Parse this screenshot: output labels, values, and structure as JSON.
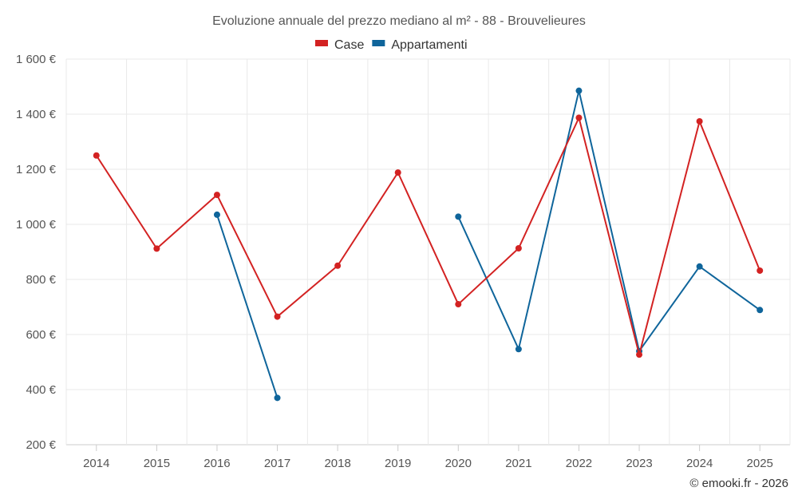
{
  "colors": {
    "case": "#d32222",
    "appartamenti": "#0f659b",
    "grid": "#e9e9e9",
    "text": "#555555"
  },
  "credit": "© emooki.fr - 2026",
  "chart_data": {
    "type": "line",
    "title": "Evoluzione annuale del prezzo mediano al m² - 88 - Brouvelieures",
    "xlabel": "",
    "ylabel": "",
    "ylim": [
      200,
      1600
    ],
    "yticks": [
      200,
      400,
      600,
      800,
      1000,
      1200,
      1400,
      1600
    ],
    "ytick_labels": [
      "200 €",
      "400 €",
      "600 €",
      "800 €",
      "1 000 €",
      "1 200 €",
      "1 400 €",
      "1 600 €"
    ],
    "categories": [
      "2014",
      "2015",
      "2016",
      "2017",
      "2018",
      "2019",
      "2020",
      "2021",
      "2022",
      "2023",
      "2024",
      "2025"
    ],
    "grid": true,
    "legend_position": "top-center",
    "series": [
      {
        "name": "Case",
        "color": "#d32222",
        "values": [
          1250,
          912,
          1107,
          665,
          850,
          1188,
          710,
          913,
          1387,
          527,
          1374,
          832
        ]
      },
      {
        "name": "Appartamenti",
        "color": "#0f659b",
        "values": [
          null,
          null,
          1035,
          370,
          null,
          null,
          1028,
          547,
          1485,
          540,
          847,
          689
        ]
      }
    ]
  }
}
